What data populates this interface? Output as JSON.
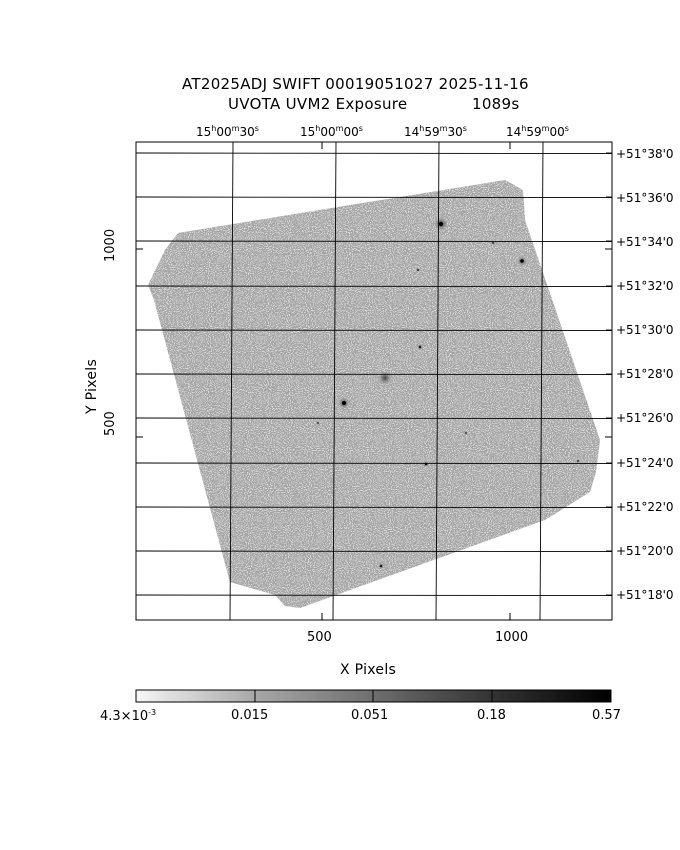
{
  "title": {
    "line1": "AT2025ADJ SWIFT 00019051027 2025-11-16",
    "line2_instrument": "UVOTA UVM2 Exposure",
    "line2_exposure": "1089s"
  },
  "axes": {
    "xlabel": "X Pixels",
    "ylabel": "Y Pixels",
    "x_ticks": [
      {
        "label": "500",
        "value": 500
      },
      {
        "label": "1000",
        "value": 1000
      }
    ],
    "y_ticks": [
      {
        "label": "500",
        "value": 500
      },
      {
        "label": "1000",
        "value": 1000
      }
    ],
    "xlim": [
      0,
      1270
    ],
    "ylim": [
      0,
      1270
    ]
  },
  "ra_labels": [
    {
      "h": "15",
      "m": "00",
      "s": "30"
    },
    {
      "h": "15",
      "m": "00",
      "s": "00"
    },
    {
      "h": "14",
      "m": "59",
      "s": "30"
    },
    {
      "h": "14",
      "m": "59",
      "s": "00"
    }
  ],
  "dec_labels": [
    "+51°38'0",
    "+51°36'0",
    "+51°34'0",
    "+51°32'0",
    "+51°30'0",
    "+51°28'0",
    "+51°26'0",
    "+51°24'0",
    "+51°22'0",
    "+51°20'0",
    "+51°18'0"
  ],
  "colorbar": {
    "labels": [
      {
        "mant": "4.3×10",
        "exp": "-3"
      },
      {
        "mant": "0.015",
        "exp": ""
      },
      {
        "mant": "0.051",
        "exp": ""
      },
      {
        "mant": "0.18",
        "exp": ""
      },
      {
        "mant": "0.57",
        "exp": ""
      }
    ],
    "colors": {
      "low": "#ffffff",
      "mid": "#8c8c8c",
      "high": "#000000"
    }
  },
  "image": {
    "background_color": "#a0a0a0",
    "noise_color": "#bdbdbd",
    "grid_color": "#000000"
  }
}
